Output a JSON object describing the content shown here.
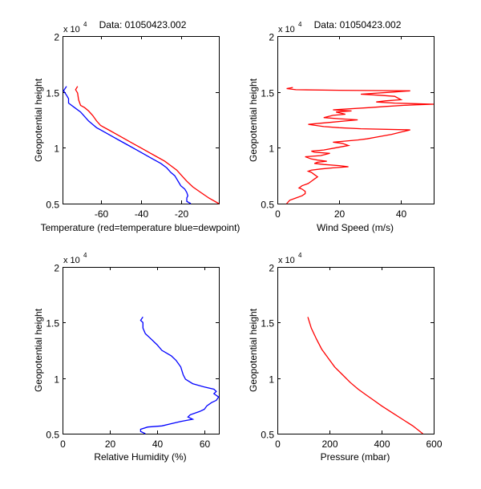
{
  "figure": {
    "background": "#ffffff"
  },
  "chart_data": [
    {
      "type": "line",
      "id": "temperature",
      "title": "Data: 01050423.002",
      "xlabel": "Temperature (red=temperature blue=dewpoint)",
      "ylabel": "Geopotential height",
      "y_multiplier_label": "x 10",
      "y_multiplier_exp": "4",
      "xlim": [
        -79,
        -1
      ],
      "ylim": [
        0.5,
        2
      ],
      "xticks": [
        -60,
        -40,
        -20
      ],
      "xtick_labels": [
        "-60",
        "-40",
        "-20"
      ],
      "yticks": [
        0.5,
        1,
        1.5,
        2
      ],
      "ytick_labels": [
        "0.5",
        "1",
        "1.5",
        "2"
      ],
      "grid": false,
      "series": [
        {
          "name": "temperature",
          "color": "#ff0000",
          "x": [
            -1,
            -6,
            -10,
            -14,
            -17,
            -20,
            -22,
            -25,
            -28,
            -32,
            -36,
            -40,
            -44,
            -48,
            -52,
            -56,
            -60,
            -62,
            -64,
            -66,
            -68,
            -70,
            -71,
            -71.5,
            -72.5,
            -71.5
          ],
          "y": [
            0.5,
            0.55,
            0.6,
            0.65,
            0.7,
            0.76,
            0.8,
            0.84,
            0.88,
            0.92,
            0.96,
            1.0,
            1.04,
            1.08,
            1.12,
            1.16,
            1.2,
            1.24,
            1.29,
            1.33,
            1.36,
            1.38,
            1.43,
            1.49,
            1.52,
            1.55
          ]
        },
        {
          "name": "dewpoint",
          "color": "#0000ff",
          "x": [
            -15,
            -17,
            -17,
            -16.5,
            -17,
            -18,
            -20,
            -21,
            -22,
            -23,
            -25,
            -27,
            -30,
            -34,
            -38,
            -42,
            -46,
            -50,
            -54,
            -58,
            -62,
            -64,
            -66,
            -68,
            -70,
            -73,
            -76,
            -76,
            -77,
            -78.5,
            -77
          ],
          "y": [
            0.5,
            0.52,
            0.55,
            0.57,
            0.6,
            0.63,
            0.66,
            0.69,
            0.72,
            0.75,
            0.78,
            0.82,
            0.86,
            0.9,
            0.94,
            0.98,
            1.02,
            1.06,
            1.1,
            1.14,
            1.18,
            1.21,
            1.24,
            1.28,
            1.32,
            1.36,
            1.4,
            1.44,
            1.47,
            1.51,
            1.55
          ]
        }
      ]
    },
    {
      "type": "line",
      "id": "wind-speed",
      "title": "Data: 01050423.002",
      "xlabel": "Wind Speed (m/s)",
      "ylabel": "Geopotential height",
      "y_multiplier_label": "x 10",
      "y_multiplier_exp": "4",
      "xlim": [
        0,
        50.6
      ],
      "ylim": [
        0.5,
        2
      ],
      "xticks": [
        0,
        20,
        40
      ],
      "xtick_labels": [
        "0",
        "20",
        "40"
      ],
      "yticks": [
        0.5,
        1,
        1.5,
        2
      ],
      "ytick_labels": [
        "0.5",
        "1",
        "1.5",
        "2"
      ],
      "grid": false,
      "series": [
        {
          "name": "wind speed",
          "color": "#ff0000",
          "x": [
            3,
            4,
            6,
            8,
            9,
            9,
            8,
            7,
            8,
            10,
            11,
            12,
            13,
            12,
            11,
            10,
            11,
            14,
            18,
            23,
            20,
            15,
            12,
            13,
            16,
            13,
            11,
            9,
            14,
            17,
            12,
            11,
            15,
            19,
            23,
            21,
            18,
            22,
            26,
            29,
            33,
            37,
            40,
            43,
            27,
            20,
            15,
            10,
            14,
            18,
            22,
            26,
            20,
            15,
            18,
            22,
            19,
            24,
            18,
            30,
            35,
            41,
            45,
            50.6,
            38,
            32,
            35,
            40,
            38,
            33,
            27,
            38,
            43,
            20,
            6,
            3,
            5
          ],
          "y": [
            0.5,
            0.53,
            0.55,
            0.57,
            0.59,
            0.61,
            0.63,
            0.64,
            0.66,
            0.68,
            0.7,
            0.72,
            0.74,
            0.76,
            0.78,
            0.79,
            0.8,
            0.81,
            0.82,
            0.83,
            0.84,
            0.85,
            0.86,
            0.87,
            0.88,
            0.89,
            0.9,
            0.92,
            0.93,
            0.95,
            0.96,
            0.97,
            0.98,
            1.0,
            1.02,
            1.04,
            1.05,
            1.06,
            1.07,
            1.08,
            1.1,
            1.12,
            1.14,
            1.16,
            1.17,
            1.18,
            1.19,
            1.21,
            1.22,
            1.23,
            1.24,
            1.25,
            1.26,
            1.27,
            1.29,
            1.3,
            1.32,
            1.33,
            1.34,
            1.36,
            1.37,
            1.38,
            1.385,
            1.39,
            1.4,
            1.41,
            1.42,
            1.43,
            1.46,
            1.47,
            1.48,
            1.5,
            1.51,
            1.515,
            1.52,
            1.53,
            1.54
          ]
        }
      ]
    },
    {
      "type": "line",
      "id": "relative-humidity",
      "title": "",
      "xlabel": "Relative Humidity (%)",
      "ylabel": "Geopotential height",
      "y_multiplier_label": "x 10",
      "y_multiplier_exp": "4",
      "xlim": [
        0,
        66.1
      ],
      "ylim": [
        0.5,
        2
      ],
      "xticks": [
        0,
        20,
        40,
        60
      ],
      "xtick_labels": [
        "0",
        "20",
        "40",
        "60"
      ],
      "yticks": [
        0.5,
        1,
        1.5,
        2
      ],
      "ytick_labels": [
        "0.5",
        "1",
        "1.5",
        "2"
      ],
      "grid": false,
      "series": [
        {
          "name": "relative humidity",
          "color": "#0000ff",
          "x": [
            35,
            33,
            33,
            36,
            42,
            46,
            50,
            55,
            53,
            54,
            58,
            60,
            61,
            63,
            65,
            66,
            64,
            65,
            64,
            60,
            55,
            52,
            51,
            50,
            48,
            46,
            42,
            40,
            37,
            35,
            34,
            34,
            33,
            34
          ],
          "y": [
            0.5,
            0.52,
            0.54,
            0.56,
            0.57,
            0.59,
            0.61,
            0.63,
            0.65,
            0.67,
            0.7,
            0.72,
            0.75,
            0.78,
            0.8,
            0.83,
            0.86,
            0.88,
            0.9,
            0.92,
            0.95,
            0.99,
            1.03,
            1.1,
            1.16,
            1.2,
            1.25,
            1.3,
            1.36,
            1.4,
            1.45,
            1.5,
            1.52,
            1.55
          ]
        }
      ]
    },
    {
      "type": "line",
      "id": "pressure",
      "title": "",
      "xlabel": "Pressure (mbar)",
      "ylabel": "Geopotential height",
      "y_multiplier_label": "x 10",
      "y_multiplier_exp": "4",
      "xlim": [
        0,
        600
      ],
      "ylim": [
        0.5,
        2
      ],
      "xticks": [
        0,
        200,
        400,
        600
      ],
      "xtick_labels": [
        "0",
        "200",
        "400",
        "600"
      ],
      "yticks": [
        0.5,
        1,
        1.5,
        2
      ],
      "ytick_labels": [
        "0.5",
        "1",
        "1.5",
        "2"
      ],
      "grid": false,
      "series": [
        {
          "name": "pressure",
          "color": "#ff0000",
          "x": [
            558,
            520,
            480,
            440,
            400,
            370,
            340,
            310,
            280,
            250,
            220,
            195,
            170,
            150,
            130,
            117
          ],
          "y": [
            0.5,
            0.57,
            0.63,
            0.69,
            0.75,
            0.8,
            0.85,
            0.9,
            0.96,
            1.03,
            1.1,
            1.18,
            1.26,
            1.35,
            1.45,
            1.55
          ]
        }
      ]
    }
  ]
}
